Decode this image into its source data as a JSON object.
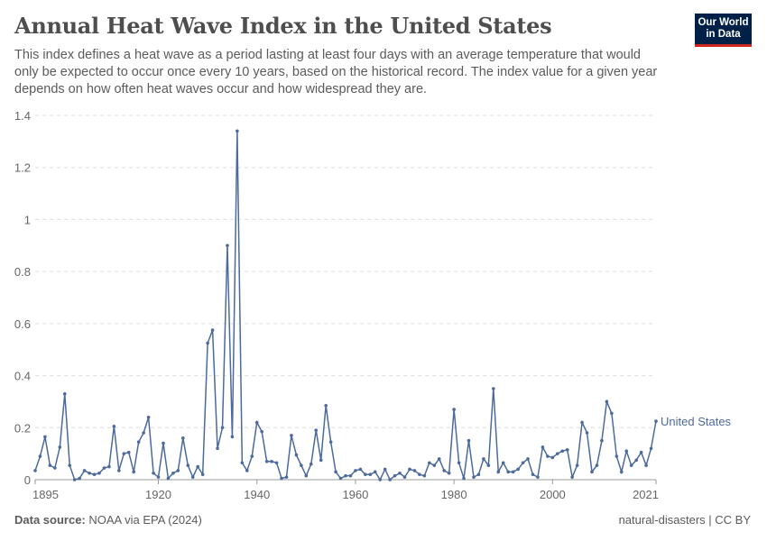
{
  "header": {
    "title": "Annual Heat Wave Index in the United States",
    "subtitle": "This index defines a heat wave as a period lasting at least four days with an average temperature that would only be expected to occur once every 10 years, based on the historical record. The index value for a given year depends on how often heat waves occur and how widespread they are."
  },
  "logo": {
    "line1": "Our World",
    "line2": "in Data"
  },
  "footer": {
    "source_label": "Data source:",
    "source": "NOAA via EPA (2024)",
    "license": "natural-disasters | CC BY"
  },
  "chart_data": {
    "type": "line",
    "title": "Annual Heat Wave Index in the United States",
    "xlabel": "",
    "ylabel": "",
    "xlim": [
      1895,
      2021
    ],
    "ylim": [
      0,
      1.4
    ],
    "x_ticks": [
      "1895",
      "1920",
      "1940",
      "1960",
      "1980",
      "2000",
      "2021"
    ],
    "y_ticks": [
      "0",
      "0.2",
      "0.4",
      "0.6",
      "0.8",
      "1",
      "1.2",
      "1.4"
    ],
    "grid": "horizontal dashed",
    "color": "#4c6a9c",
    "series": [
      {
        "name": "United States",
        "x_start": 1895,
        "values": [
          0.035,
          0.09,
          0.165,
          0.055,
          0.045,
          0.125,
          0.33,
          0.055,
          0.0,
          0.005,
          0.035,
          0.025,
          0.02,
          0.025,
          0.045,
          0.05,
          0.205,
          0.035,
          0.1,
          0.105,
          0.03,
          0.145,
          0.18,
          0.24,
          0.025,
          0.01,
          0.14,
          0.005,
          0.025,
          0.035,
          0.16,
          0.055,
          0.01,
          0.05,
          0.02,
          0.525,
          0.575,
          0.12,
          0.2,
          0.9,
          0.165,
          1.34,
          0.065,
          0.035,
          0.09,
          0.22,
          0.185,
          0.07,
          0.07,
          0.065,
          0.005,
          0.01,
          0.17,
          0.095,
          0.055,
          0.015,
          0.06,
          0.19,
          0.075,
          0.285,
          0.145,
          0.03,
          0.005,
          0.015,
          0.015,
          0.035,
          0.04,
          0.02,
          0.02,
          0.03,
          0.0,
          0.04,
          0.0,
          0.015,
          0.025,
          0.01,
          0.04,
          0.035,
          0.02,
          0.015,
          0.065,
          0.055,
          0.08,
          0.035,
          0.025,
          0.27,
          0.065,
          0.005,
          0.15,
          0.01,
          0.02,
          0.08,
          0.055,
          0.35,
          0.03,
          0.065,
          0.03,
          0.03,
          0.04,
          0.065,
          0.08,
          0.02,
          0.01,
          0.125,
          0.09,
          0.085,
          0.1,
          0.11,
          0.115,
          0.01,
          0.055,
          0.22,
          0.18,
          0.03,
          0.055,
          0.15,
          0.3,
          0.255,
          0.09,
          0.03,
          0.11,
          0.055,
          0.075,
          0.105,
          0.055,
          0.12,
          0.225
        ]
      }
    ]
  }
}
